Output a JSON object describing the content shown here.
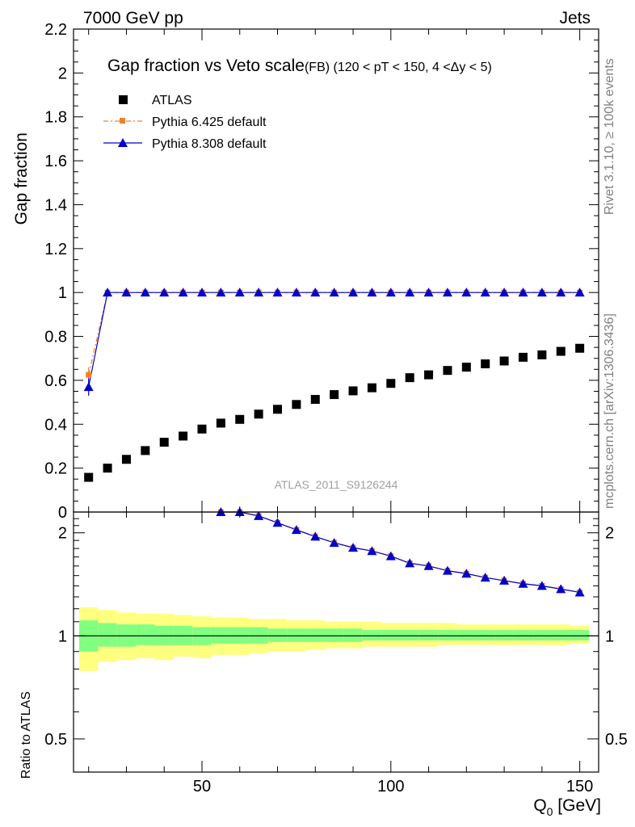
{
  "header": {
    "energy": "7000 GeV pp",
    "process": "Jets",
    "title_main": "Gap fraction vs Veto scale",
    "title_sub": "(FB) (120 < pT < 150, 4 <Δy < 5)",
    "watermark": "ATLAS_2011_S9126244",
    "side_top": "Rivet 3.1.10, ≥ 100k events",
    "side_bottom": "mcplots.cern.ch [arXiv:1306.3436]"
  },
  "chart_data": [
    {
      "type": "scatter",
      "panel": "main",
      "ylabel": "Gap fraction",
      "xlim": [
        16,
        155
      ],
      "ylim": [
        0,
        2.2
      ],
      "yticks": [
        0,
        0.2,
        0.4,
        0.6,
        0.8,
        1,
        1.2,
        1.4,
        1.6,
        1.8,
        2,
        2.2
      ],
      "ytick_labels": [
        "0",
        "0.2",
        "0.4",
        "0.6",
        "0.8",
        "1",
        "1.2",
        "1.4",
        "1.6",
        "1.8",
        "2",
        "2.2"
      ],
      "legend_position": "top-left",
      "x": [
        20,
        25,
        30,
        35,
        40,
        45,
        50,
        55,
        60,
        65,
        70,
        75,
        80,
        85,
        90,
        95,
        100,
        105,
        110,
        115,
        120,
        125,
        130,
        135,
        140,
        145,
        150
      ],
      "series": [
        {
          "name": "ATLAS",
          "color": "#000000",
          "marker": "square",
          "values": [
            0.158,
            0.2,
            0.24,
            0.28,
            0.318,
            0.346,
            0.378,
            0.405,
            0.422,
            0.446,
            0.468,
            0.49,
            0.513,
            0.535,
            0.552,
            0.566,
            0.586,
            0.612,
            0.625,
            0.645,
            0.66,
            0.675,
            0.688,
            0.705,
            0.716,
            0.732,
            0.746
          ]
        },
        {
          "name": "Pythia 6.425 default",
          "color": "#f08030",
          "marker": "square-small",
          "line": "dashdot",
          "values": [
            0.625,
            1,
            1,
            1,
            1,
            1,
            1,
            1,
            1,
            1,
            1,
            1,
            1,
            1,
            1,
            1,
            1,
            1,
            1,
            1,
            1,
            1,
            1,
            1,
            1,
            1,
            1
          ]
        },
        {
          "name": "Pythia 8.308 default",
          "color": "#0000cc",
          "marker": "triangle",
          "line": "solid",
          "values": [
            0.57,
            1,
            1,
            1,
            1,
            1,
            1,
            1,
            1,
            1,
            1,
            1,
            1,
            1,
            1,
            1,
            1,
            1,
            1,
            1,
            1,
            1,
            1,
            1,
            1,
            1,
            1
          ]
        }
      ]
    },
    {
      "type": "line",
      "panel": "ratio",
      "ylabel": "Ratio to ATLAS",
      "xlabel_main": "Q",
      "xlabel_sub": "0",
      "xlabel_unit": " [GeV]",
      "xlim": [
        16,
        155
      ],
      "ylim": [
        0.4,
        2.3
      ],
      "log_y": true,
      "xticks": [
        50,
        100,
        150
      ],
      "xtick_labels": [
        "50",
        "100",
        "150"
      ],
      "yticks": [
        0.5,
        1,
        2
      ],
      "ytick_labels": [
        "0.5",
        "1",
        "2"
      ],
      "x": [
        55,
        60,
        65,
        70,
        75,
        80,
        85,
        90,
        95,
        100,
        105,
        110,
        115,
        120,
        125,
        130,
        135,
        140,
        145,
        150
      ],
      "band_x_edges": [
        17.5,
        22.5,
        27.5,
        32.5,
        37.5,
        42.5,
        47.5,
        52.5,
        57.5,
        62.5,
        67.5,
        72.5,
        77.5,
        82.5,
        87.5,
        92.5,
        97.5,
        102.5,
        107.5,
        112.5,
        117.5,
        122.5,
        127.5,
        132.5,
        137.5,
        142.5,
        147.5,
        152.5
      ],
      "band_yellow_low": [
        0.79,
        0.84,
        0.85,
        0.86,
        0.85,
        0.87,
        0.86,
        0.88,
        0.88,
        0.89,
        0.9,
        0.9,
        0.91,
        0.92,
        0.92,
        0.93,
        0.93,
        0.93,
        0.93,
        0.94,
        0.94,
        0.94,
        0.94,
        0.94,
        0.94,
        0.94,
        0.95
      ],
      "band_yellow_high": [
        1.21,
        1.19,
        1.17,
        1.16,
        1.16,
        1.15,
        1.14,
        1.13,
        1.13,
        1.12,
        1.12,
        1.11,
        1.11,
        1.1,
        1.1,
        1.1,
        1.09,
        1.09,
        1.09,
        1.09,
        1.08,
        1.08,
        1.08,
        1.08,
        1.08,
        1.08,
        1.07
      ],
      "band_green_low": [
        0.9,
        0.93,
        0.93,
        0.94,
        0.94,
        0.94,
        0.94,
        0.95,
        0.95,
        0.95,
        0.96,
        0.96,
        0.96,
        0.96,
        0.96,
        0.97,
        0.97,
        0.97,
        0.97,
        0.97,
        0.97,
        0.97,
        0.97,
        0.97,
        0.97,
        0.97,
        0.97
      ],
      "band_green_high": [
        1.11,
        1.09,
        1.08,
        1.08,
        1.07,
        1.07,
        1.06,
        1.06,
        1.06,
        1.06,
        1.05,
        1.05,
        1.05,
        1.05,
        1.05,
        1.04,
        1.04,
        1.04,
        1.04,
        1.04,
        1.04,
        1.04,
        1.04,
        1.04,
        1.04,
        1.04,
        1.04
      ],
      "band_yellow_color": "#ffff80",
      "band_green_color": "#80ff80",
      "series": [
        {
          "name": "Pythia 6.425 default",
          "color": "#f08030",
          "marker": "square-small",
          "values": [
            2.47,
            2.37,
            2.24,
            2.14,
            2.04,
            1.95,
            1.87,
            1.81,
            1.77,
            1.71,
            1.63,
            1.6,
            1.55,
            1.52,
            1.48,
            1.45,
            1.42,
            1.4,
            1.37,
            1.34
          ]
        },
        {
          "name": "Pythia 8.308 default",
          "color": "#0000cc",
          "marker": "triangle",
          "values": [
            2.47,
            2.37,
            2.24,
            2.14,
            2.04,
            1.95,
            1.87,
            1.81,
            1.77,
            1.71,
            1.63,
            1.6,
            1.55,
            1.52,
            1.48,
            1.45,
            1.42,
            1.4,
            1.37,
            1.34
          ]
        }
      ]
    }
  ]
}
